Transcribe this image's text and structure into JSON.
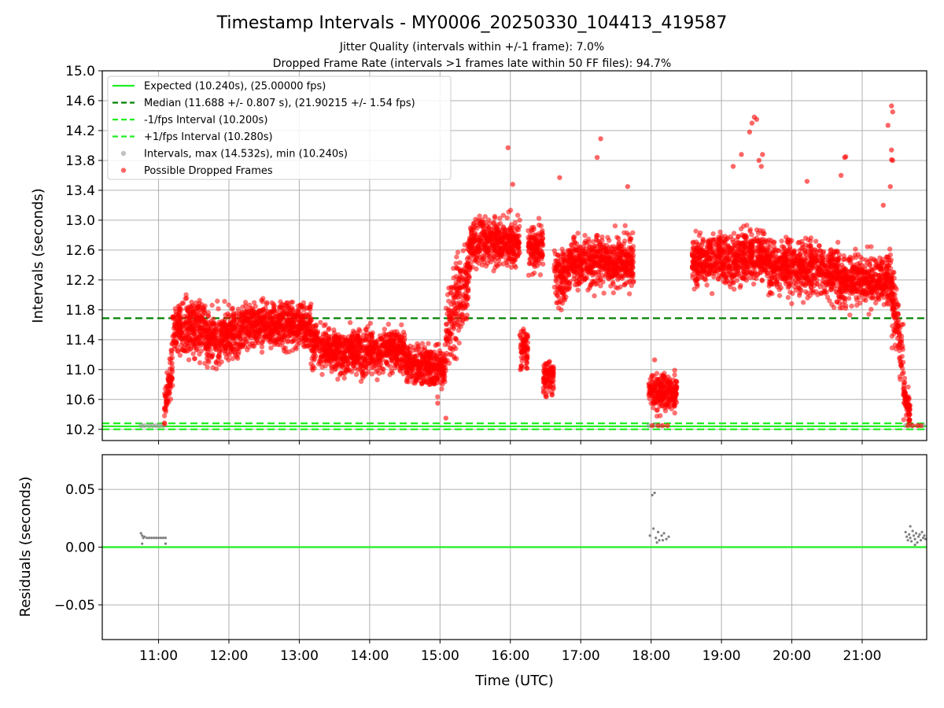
{
  "title": "Timestamp Intervals - MY0006_20250330_104413_419587",
  "subtitle_1": "Jitter Quality (intervals within +/-1 frame): 7.0%",
  "subtitle_2": "Dropped Frame Rate (intervals >1 frames late within 50 FF files): 94.7%",
  "colors": {
    "expected": "#22ee22",
    "median": "#008000",
    "fps_band": "#22ee22",
    "intervals": "#999999",
    "dropped": "#ff0000",
    "residual_points": "#808080",
    "residual_zero": "#22ee22",
    "grid": "#b0b0b0"
  },
  "chart_data": [
    {
      "type": "scatter",
      "panel": "top",
      "xlabel": "",
      "ylabel": "Intervals (seconds)",
      "xlim": [
        "10:12",
        "21:55"
      ],
      "ylim": [
        10.05,
        15.0
      ],
      "yticks": [
        "10.2",
        "10.6",
        "11.0",
        "11.4",
        "11.8",
        "12.2",
        "12.6",
        "13.0",
        "13.4",
        "13.8",
        "14.2",
        "14.6",
        "15.0"
      ],
      "grid": true,
      "legend_placement": "top-left",
      "legend": [
        "Expected (10.240s), (25.00000 fps)",
        "Median (11.688 +/- 0.807 s), (21.90215 +/- 1.54 fps)",
        "-1/fps Interval (10.200s)",
        "+1/fps Interval (10.280s)",
        "Intervals, max (14.532s), min (10.240s)",
        "Possible Dropped Frames"
      ],
      "reference_lines": {
        "expected": 10.24,
        "median": 11.688,
        "minus_1_fps": 10.2,
        "plus_1_fps": 10.28
      },
      "series": [
        {
          "name": "Intervals, max (14.532s), min (10.240s)",
          "points": [
            [
              "10:45",
              10.25
            ],
            [
              "10:48",
              10.25
            ],
            [
              "10:52",
              10.25
            ],
            [
              "10:55",
              10.25
            ],
            [
              "10:58",
              10.25
            ],
            [
              "11:01",
              10.25
            ],
            [
              "11:04",
              10.25
            ],
            [
              "17:58",
              10.25
            ],
            [
              "18:03",
              10.26
            ],
            [
              "18:08",
              10.25
            ],
            [
              "21:37",
              10.25
            ],
            [
              "21:42",
              10.25
            ],
            [
              "21:48",
              10.25
            ],
            [
              "21:52",
              10.25
            ]
          ]
        },
        {
          "name": "Possible Dropped Frames",
          "segments": [
            {
              "start": "11:05",
              "end": "11:12",
              "center": 10.75,
              "spread": 0.25,
              "trend": 0.6
            },
            {
              "start": "11:12",
              "end": "11:40",
              "center": 11.55,
              "spread": 0.35,
              "trend": 0
            },
            {
              "start": "11:40",
              "end": "12:10",
              "center": 11.45,
              "spread": 0.32,
              "trend": 0.1
            },
            {
              "start": "12:10",
              "end": "13:10",
              "center": 11.6,
              "spread": 0.3,
              "trend": 0
            },
            {
              "start": "13:10",
              "end": "13:35",
              "center": 11.3,
              "spread": 0.28,
              "trend": -0.1
            },
            {
              "start": "13:35",
              "end": "14:30",
              "center": 11.25,
              "spread": 0.28,
              "trend": 0.05
            },
            {
              "start": "14:30",
              "end": "15:05",
              "center": 11.05,
              "spread": 0.25,
              "trend": -0.05
            },
            {
              "start": "15:05",
              "end": "15:25",
              "center": 11.9,
              "spread": 0.55,
              "trend": 0.8
            },
            {
              "start": "15:25",
              "end": "16:08",
              "center": 12.7,
              "spread": 0.3,
              "trend": 0
            },
            {
              "start": "16:08",
              "end": "16:15",
              "center": 11.3,
              "spread": 0.3,
              "trend": 0
            },
            {
              "start": "16:15",
              "end": "16:28",
              "center": 12.65,
              "spread": 0.3,
              "trend": 0
            },
            {
              "start": "16:28",
              "end": "16:37",
              "center": 10.9,
              "spread": 0.22,
              "trend": 0
            },
            {
              "start": "16:37",
              "end": "16:48",
              "center": 12.25,
              "spread": 0.4,
              "trend": 0
            },
            {
              "start": "16:48",
              "end": "17:45",
              "center": 12.45,
              "spread": 0.32,
              "trend": 0
            },
            {
              "start": "17:58",
              "end": "18:22",
              "center": 10.7,
              "spread": 0.24,
              "trend": 0
            },
            {
              "start": "18:35",
              "end": "19:40",
              "center": 12.5,
              "spread": 0.33,
              "trend": 0.05
            },
            {
              "start": "19:40",
              "end": "20:40",
              "center": 12.35,
              "spread": 0.33,
              "trend": -0.05
            },
            {
              "start": "20:40",
              "end": "21:25",
              "center": 12.2,
              "spread": 0.3,
              "trend": 0
            },
            {
              "start": "21:25",
              "end": "21:35",
              "center": 11.6,
              "spread": 0.45,
              "trend": -0.8
            },
            {
              "start": "21:35",
              "end": "21:41",
              "center": 10.55,
              "spread": 0.22,
              "trend": -0.3
            }
          ],
          "outliers": [
            [
              "15:58",
              13.97
            ],
            [
              "16:02",
              13.48
            ],
            [
              "16:42",
              13.57
            ],
            [
              "17:14",
              13.84
            ],
            [
              "17:17",
              14.09
            ],
            [
              "17:40",
              13.45
            ],
            [
              "19:10",
              13.72
            ],
            [
              "19:17",
              13.88
            ],
            [
              "19:24",
              14.18
            ],
            [
              "19:26",
              14.3
            ],
            [
              "19:28",
              14.38
            ],
            [
              "19:30",
              14.35
            ],
            [
              "19:32",
              13.8
            ],
            [
              "19:34",
              13.72
            ],
            [
              "19:35",
              13.88
            ],
            [
              "20:13",
              13.52
            ],
            [
              "20:45",
              13.84
            ],
            [
              "20:46",
              13.85
            ],
            [
              "20:42",
              13.6
            ],
            [
              "21:18",
              13.2
            ],
            [
              "21:22",
              14.27
            ],
            [
              "21:25",
              14.53
            ],
            [
              "21:26",
              14.45
            ],
            [
              "21:25",
              13.94
            ],
            [
              "21:25",
              13.81
            ],
            [
              "21:26",
              13.8
            ],
            [
              "21:24",
              13.45
            ],
            [
              "18:03",
              11.13
            ],
            [
              "18:01",
              10.25
            ],
            [
              "18:06",
              10.25
            ],
            [
              "18:10",
              10.25
            ],
            [
              "18:14",
              10.25
            ],
            [
              "21:39",
              10.25
            ],
            [
              "21:43",
              10.25
            ],
            [
              "21:47",
              10.25
            ],
            [
              "21:50",
              10.25
            ],
            [
              "15:17",
              11.67
            ],
            [
              "15:05",
              10.35
            ],
            [
              "14:58",
              10.55
            ]
          ]
        }
      ]
    },
    {
      "type": "scatter",
      "panel": "bottom",
      "xlabel": "Time (UTC)",
      "ylabel": "Residuals (seconds)",
      "xlim": [
        "10:12",
        "21:55"
      ],
      "ylim": [
        -0.08,
        0.08
      ],
      "yticks": [
        "0.05",
        "0.00",
        "−0.05"
      ],
      "xticks": [
        "11:00",
        "12:00",
        "13:00",
        "14:00",
        "15:00",
        "16:00",
        "17:00",
        "18:00",
        "19:00",
        "20:00",
        "21:00"
      ],
      "grid": true,
      "zero_line": 0.0,
      "series": [
        {
          "name": "",
          "points": [
            [
              "10:45",
              0.012
            ],
            [
              "10:46",
              0.01
            ],
            [
              "10:47",
              0.008
            ],
            [
              "10:48",
              0.009
            ],
            [
              "10:50",
              0.008
            ],
            [
              "10:52",
              0.008
            ],
            [
              "10:54",
              0.008
            ],
            [
              "10:56",
              0.008
            ],
            [
              "10:58",
              0.008
            ],
            [
              "11:00",
              0.008
            ],
            [
              "11:02",
              0.008
            ],
            [
              "11:04",
              0.008
            ],
            [
              "11:06",
              0.008
            ],
            [
              "10:46",
              0.003
            ],
            [
              "11:06",
              0.003
            ],
            [
              "18:01",
              0.045
            ],
            [
              "18:03",
              0.047
            ],
            [
              "17:59",
              0.01
            ],
            [
              "18:02",
              0.016
            ],
            [
              "18:04",
              0.008
            ],
            [
              "18:06",
              0.013
            ],
            [
              "18:07",
              0.006
            ],
            [
              "18:09",
              0.01
            ],
            [
              "18:11",
              0.012
            ],
            [
              "18:13",
              0.007
            ],
            [
              "18:15",
              0.009
            ],
            [
              "18:05",
              0.004
            ],
            [
              "18:10",
              0.006
            ],
            [
              "21:37",
              0.013
            ],
            [
              "21:38",
              0.009
            ],
            [
              "21:39",
              0.006
            ],
            [
              "21:40",
              0.011
            ],
            [
              "21:41",
              0.008
            ],
            [
              "21:42",
              0.005
            ],
            [
              "21:43",
              0.014
            ],
            [
              "21:44",
              0.01
            ],
            [
              "21:45",
              0.007
            ],
            [
              "21:46",
              0.012
            ],
            [
              "21:47",
              0.004
            ],
            [
              "21:48",
              0.009
            ],
            [
              "21:49",
              0.011
            ],
            [
              "21:50",
              0.006
            ],
            [
              "21:51",
              0.013
            ],
            [
              "21:52",
              0.008
            ],
            [
              "21:53",
              0.01
            ],
            [
              "21:54",
              0.007
            ],
            [
              "21:41",
              0.018
            ],
            [
              "21:45",
              0.002
            ]
          ]
        }
      ]
    }
  ]
}
